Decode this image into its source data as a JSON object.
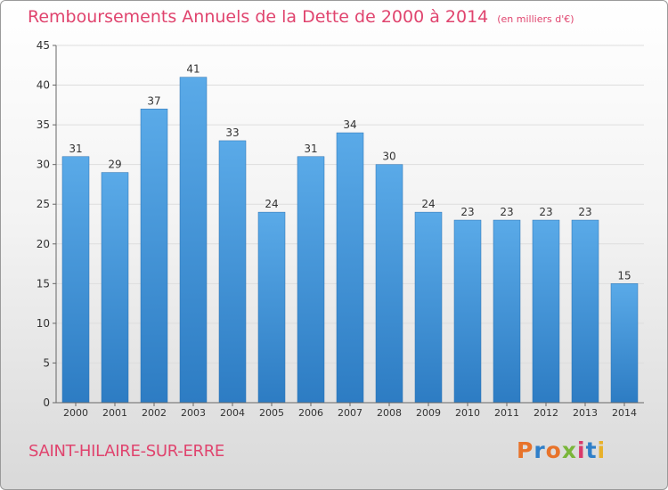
{
  "title": "Remboursements Annuels de la Dette de 2000 à 2014",
  "title_unit": "(en milliers d'€)",
  "commune": "SAINT-HILAIRE-SUR-ERRE",
  "logo": {
    "text": "Proxiti",
    "letter_colors": [
      "#e8732a",
      "#2f7fc9",
      "#e8732a",
      "#7ab63a",
      "#d93a6b",
      "#2f7fc9",
      "#e8b12a"
    ]
  },
  "colors": {
    "title": "#e0446e",
    "bar_light": "#5aaae8",
    "bar_dark": "#2d7cc3",
    "axis": "#666666",
    "grid": "#dddddd"
  },
  "chart_data": {
    "type": "bar",
    "categories": [
      "2000",
      "2001",
      "2002",
      "2003",
      "2004",
      "2005",
      "2006",
      "2007",
      "2008",
      "2009",
      "2010",
      "2011",
      "2012",
      "2013",
      "2014"
    ],
    "values": [
      31,
      29,
      37,
      41,
      33,
      24,
      31,
      34,
      30,
      24,
      23,
      23,
      23,
      23,
      15
    ],
    "ylim": [
      0,
      45
    ],
    "yticks": [
      0,
      5,
      10,
      15,
      20,
      25,
      30,
      35,
      40,
      45
    ],
    "grid": true,
    "xlabel": "",
    "ylabel": ""
  }
}
